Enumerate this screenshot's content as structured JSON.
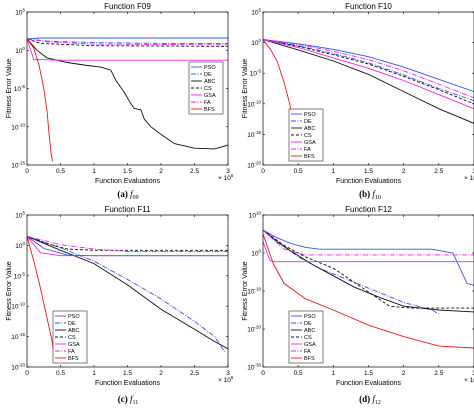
{
  "figure": {
    "captions": [
      {
        "letter": "(a)",
        "func": "f",
        "sub": "09"
      },
      {
        "letter": "(b)",
        "func": "f",
        "sub": "10"
      },
      {
        "letter": "(c)",
        "func": "f",
        "sub": "11"
      },
      {
        "letter": "(d)",
        "func": "f",
        "sub": "12"
      }
    ]
  },
  "chart_data": [
    {
      "type": "line",
      "title": "Function F09",
      "xlabel": "Function Evaluations",
      "ylabel": "Fitness Error Value",
      "x_multiplier": "× 10^5",
      "xlim": [
        0,
        3
      ],
      "x_ticks": [
        0,
        0.5,
        1,
        1.5,
        2,
        2.5,
        3
      ],
      "y_scale": "log",
      "ylim_exp": [
        -15,
        5
      ],
      "y_ticks_exp": [
        -15,
        -10,
        -5,
        0,
        5
      ],
      "legend": "right",
      "series": [
        {
          "name": "PSO",
          "color": "#3355ee",
          "dash": "",
          "points": [
            [
              0,
              1.5
            ],
            [
              0.2,
              1.6
            ],
            [
              1,
              1.6
            ],
            [
              2,
              1.6
            ],
            [
              3,
              1.6
            ]
          ]
        },
        {
          "name": "DE",
          "color": "#3355ee",
          "dash": "5,1.5,1,1.5",
          "points": [
            [
              0,
              1.5
            ],
            [
              0.3,
              1.2
            ],
            [
              1,
              1
            ],
            [
              2,
              0.9
            ],
            [
              3,
              0.9
            ]
          ]
        },
        {
          "name": "ABC",
          "color": "#111111",
          "dash": "",
          "points": [
            [
              0,
              1.5
            ],
            [
              0.15,
              0
            ],
            [
              0.3,
              -1
            ],
            [
              0.6,
              -1.6
            ],
            [
              0.9,
              -2
            ],
            [
              1.1,
              -2.2
            ],
            [
              1.25,
              -2.6
            ],
            [
              1.33,
              -4
            ],
            [
              1.45,
              -5.5
            ],
            [
              1.55,
              -7
            ],
            [
              1.6,
              -7.6
            ],
            [
              1.7,
              -7.8
            ],
            [
              1.75,
              -9
            ],
            [
              1.85,
              -10
            ],
            [
              2,
              -11
            ],
            [
              2.2,
              -12.2
            ],
            [
              2.5,
              -12.8
            ],
            [
              2.8,
              -12.9
            ],
            [
              3,
              -12.4
            ]
          ]
        },
        {
          "name": "CS",
          "color": "#111111",
          "dash": "3,2",
          "points": [
            [
              0,
              1.5
            ],
            [
              0.2,
              0.9
            ],
            [
              1,
              0.6
            ],
            [
              2,
              0.55
            ],
            [
              3,
              0.5
            ]
          ]
        },
        {
          "name": "GSA",
          "color": "#ee22ee",
          "dash": "",
          "points": [
            [
              0,
              1.5
            ],
            [
              0.1,
              -1.2
            ],
            [
              0.5,
              -1.3
            ],
            [
              3,
              -1.3
            ]
          ]
        },
        {
          "name": "FA",
          "color": "#ee22ee",
          "dash": "5,1.5,1,1.5",
          "points": [
            [
              0,
              1.5
            ],
            [
              0.3,
              1.1
            ],
            [
              1,
              0.8
            ],
            [
              3,
              0.7
            ]
          ]
        },
        {
          "name": "BFS",
          "color": "#e31a1c",
          "dash": "",
          "points": [
            [
              0,
              1.5
            ],
            [
              0.1,
              0.3
            ],
            [
              0.18,
              -2
            ],
            [
              0.25,
              -5
            ],
            [
              0.3,
              -8
            ],
            [
              0.33,
              -11
            ],
            [
              0.36,
              -13.5
            ],
            [
              0.38,
              -14.5
            ]
          ]
        }
      ]
    },
    {
      "type": "line",
      "title": "Function F10",
      "xlabel": "Function Evaluations",
      "ylabel": "Fitness Error Value",
      "x_multiplier": "× 10^5",
      "xlim": [
        0,
        3
      ],
      "x_ticks": [
        0,
        0.5,
        1,
        1.5,
        2,
        2.5,
        3
      ],
      "y_scale": "log",
      "ylim_exp": [
        -20,
        5
      ],
      "y_ticks_exp": [
        -20,
        -15,
        -10,
        -5,
        0,
        5
      ],
      "legend": "bottom-left",
      "series": [
        {
          "name": "PSO",
          "color": "#3355ee",
          "dash": "",
          "points": [
            [
              0,
              0.5
            ],
            [
              0.5,
              -0.2
            ],
            [
              1,
              -1.1
            ],
            [
              1.5,
              -2.3
            ],
            [
              2,
              -4
            ],
            [
              2.5,
              -6
            ],
            [
              3,
              -8
            ]
          ]
        },
        {
          "name": "DE",
          "color": "#3355ee",
          "dash": "5,1.5,1,1.5",
          "points": [
            [
              0,
              0.5
            ],
            [
              0.5,
              -0.5
            ],
            [
              1,
              -1.8
            ],
            [
              1.5,
              -3.3
            ],
            [
              2,
              -5.3
            ],
            [
              2.5,
              -7.5
            ],
            [
              3,
              -9.5
            ]
          ]
        },
        {
          "name": "ABC",
          "color": "#111111",
          "dash": "",
          "points": [
            [
              0,
              0.5
            ],
            [
              0.5,
              -1.2
            ],
            [
              1,
              -3
            ],
            [
              1.5,
              -5.2
            ],
            [
              2,
              -8
            ],
            [
              2.5,
              -10.8
            ],
            [
              3,
              -13.2
            ]
          ]
        },
        {
          "name": "CS",
          "color": "#111111",
          "dash": "3,2",
          "points": [
            [
              0,
              0.5
            ],
            [
              0.5,
              -0.6
            ],
            [
              1,
              -2
            ],
            [
              1.5,
              -3.5
            ],
            [
              2,
              -5.5
            ],
            [
              2.5,
              -7.7
            ],
            [
              3,
              -10
            ]
          ]
        },
        {
          "name": "GSA",
          "color": "#ee22ee",
          "dash": "",
          "points": [
            [
              0,
              0.5
            ],
            [
              0.5,
              -0.8
            ],
            [
              1,
              -2.5
            ],
            [
              1.5,
              -4.2
            ],
            [
              2,
              -6.2
            ],
            [
              2.5,
              -8.5
            ],
            [
              3,
              -10.8
            ]
          ]
        },
        {
          "name": "FA",
          "color": "#ee22ee",
          "dash": "5,1.5,1,1.5",
          "points": [
            [
              0,
              0.5
            ],
            [
              0.5,
              -0.3
            ],
            [
              1,
              -1.4
            ],
            [
              1.5,
              -2.8
            ],
            [
              2,
              -4.6
            ],
            [
              2.5,
              -6.8
            ],
            [
              3,
              -9
            ]
          ]
        },
        {
          "name": "BFS",
          "color": "#e31a1c",
          "dash": "",
          "points": [
            [
              0,
              0.5
            ],
            [
              0.1,
              -1
            ],
            [
              0.2,
              -3
            ],
            [
              0.3,
              -6.5
            ],
            [
              0.38,
              -10
            ],
            [
              0.45,
              -14
            ],
            [
              0.5,
              -17
            ]
          ]
        }
      ]
    },
    {
      "type": "line",
      "title": "Function F11",
      "xlabel": "Function Evaluations",
      "ylabel": "Fitness Error Value",
      "x_multiplier": "× 10^5",
      "xlim": [
        0,
        3
      ],
      "x_ticks": [
        0,
        0.5,
        1,
        1.5,
        2,
        2.5,
        3
      ],
      "y_scale": "log",
      "ylim_exp": [
        -20,
        5
      ],
      "y_ticks_exp": [
        -20,
        -15,
        -10,
        -5,
        0,
        5
      ],
      "legend": "bottom-left",
      "series": [
        {
          "name": "PSO",
          "color": "#3355ee",
          "dash": "",
          "points": [
            [
              0,
              1.5
            ],
            [
              0.25,
              -0.5
            ],
            [
              0.6,
              -1.6
            ],
            [
              1,
              -1.7
            ],
            [
              3,
              -1.7
            ]
          ]
        },
        {
          "name": "DE",
          "color": "#3355ee",
          "dash": "5,1.5,1,1.5",
          "points": [
            [
              0,
              1.5
            ],
            [
              0.5,
              -0.4
            ],
            [
              1,
              -2.6
            ],
            [
              1.5,
              -5.6
            ],
            [
              2,
              -8.8
            ],
            [
              2.5,
              -12.5
            ],
            [
              2.8,
              -15
            ],
            [
              2.95,
              -17.5
            ]
          ]
        },
        {
          "name": "ABC",
          "color": "#111111",
          "dash": "",
          "points": [
            [
              0,
              1.5
            ],
            [
              0.5,
              -0.8
            ],
            [
              1,
              -3
            ],
            [
              1.5,
              -6.5
            ],
            [
              2,
              -10.5
            ],
            [
              2.5,
              -13.8
            ],
            [
              2.8,
              -15.8
            ],
            [
              3,
              -17
            ]
          ]
        },
        {
          "name": "CS",
          "color": "#111111",
          "dash": "3,2",
          "points": [
            [
              0,
              1.5
            ],
            [
              0.3,
              0.3
            ],
            [
              0.6,
              -0.6
            ],
            [
              1,
              -0.8
            ],
            [
              3,
              -0.8
            ]
          ]
        },
        {
          "name": "GSA",
          "color": "#ee22ee",
          "dash": "",
          "points": [
            [
              0,
              1.5
            ],
            [
              0.2,
              -1.2
            ],
            [
              0.5,
              -1.7
            ],
            [
              3,
              -1.7
            ]
          ]
        },
        {
          "name": "FA",
          "color": "#ee22ee",
          "dash": "5,1.5,1,1.5",
          "points": [
            [
              0,
              1.5
            ],
            [
              0.5,
              0.1
            ],
            [
              1,
              -0.6
            ],
            [
              1.5,
              -1
            ],
            [
              3,
              -1
            ]
          ]
        },
        {
          "name": "BFS",
          "color": "#e31a1c",
          "dash": "",
          "points": [
            [
              0,
              1.5
            ],
            [
              0.1,
              -2.5
            ],
            [
              0.2,
              -7
            ],
            [
              0.3,
              -12
            ],
            [
              0.37,
              -15.5
            ],
            [
              0.4,
              -17.5
            ]
          ]
        }
      ]
    },
    {
      "type": "line",
      "title": "Function F12",
      "xlabel": "Function Evaluations",
      "ylabel": "Fitness Error Value",
      "x_multiplier": "× 10^5",
      "xlim": [
        0,
        3
      ],
      "x_ticks": [
        0,
        0.5,
        1,
        1.5,
        2,
        2.5,
        3
      ],
      "y_scale": "log",
      "ylim_exp": [
        -30,
        10
      ],
      "y_ticks_exp": [
        -30,
        -20,
        -10,
        0,
        10
      ],
      "legend": "bottom-left",
      "series": [
        {
          "name": "PSO",
          "color": "#3355ee",
          "dash": "",
          "points": [
            [
              0,
              6
            ],
            [
              0.2,
              4
            ],
            [
              0.4,
              2.5
            ],
            [
              0.6,
              1.5
            ],
            [
              0.8,
              1
            ],
            [
              2.4,
              1
            ],
            [
              2.7,
              0
            ],
            [
              2.9,
              -8
            ],
            [
              3,
              -8.5
            ]
          ]
        },
        {
          "name": "DE",
          "color": "#3355ee",
          "dash": "5,1.5,1,1.5",
          "points": [
            [
              0,
              6
            ],
            [
              0.2,
              3
            ],
            [
              0.5,
              -1
            ],
            [
              0.8,
              -4
            ],
            [
              1.2,
              -7
            ],
            [
              1.6,
              -10
            ],
            [
              2,
              -13
            ],
            [
              2.4,
              -15
            ],
            [
              2.5,
              -16
            ]
          ]
        },
        {
          "name": "ABC",
          "color": "#111111",
          "dash": "",
          "points": [
            [
              0,
              6
            ],
            [
              0.2,
              3
            ],
            [
              0.4,
              0.5
            ],
            [
              0.7,
              -3
            ],
            [
              1,
              -6
            ],
            [
              1.3,
              -9
            ],
            [
              1.7,
              -12
            ],
            [
              2,
              -14
            ],
            [
              2.5,
              -15
            ],
            [
              3,
              -15.5
            ]
          ]
        },
        {
          "name": "CS",
          "color": "#111111",
          "dash": "3,2",
          "points": [
            [
              0,
              6
            ],
            [
              0.3,
              2
            ],
            [
              0.6,
              -1
            ],
            [
              1,
              -4
            ],
            [
              1.4,
              -9
            ],
            [
              1.8,
              -14
            ],
            [
              2.1,
              -14.5
            ],
            [
              3,
              -14.5
            ]
          ]
        },
        {
          "name": "GSA",
          "color": "#ee22ee",
          "dash": "",
          "points": [
            [
              0,
              3
            ],
            [
              0.1,
              -2
            ],
            [
              0.15,
              -2.3
            ],
            [
              3,
              -2.3
            ]
          ]
        },
        {
          "name": "FA",
          "color": "#ee22ee",
          "dash": "5,1.5,1,1.5",
          "points": [
            [
              0,
              6
            ],
            [
              0.3,
              1
            ],
            [
              0.6,
              -0.5
            ],
            [
              3,
              -0.5
            ]
          ]
        },
        {
          "name": "BFS",
          "color": "#e31a1c",
          "dash": "",
          "points": [
            [
              0,
              5
            ],
            [
              0.15,
              -3
            ],
            [
              0.3,
              -8
            ],
            [
              0.6,
              -12
            ],
            [
              1,
              -15
            ],
            [
              1.5,
              -19
            ],
            [
              2,
              -22
            ],
            [
              2.5,
              -24.5
            ],
            [
              3,
              -25
            ]
          ]
        }
      ]
    }
  ]
}
